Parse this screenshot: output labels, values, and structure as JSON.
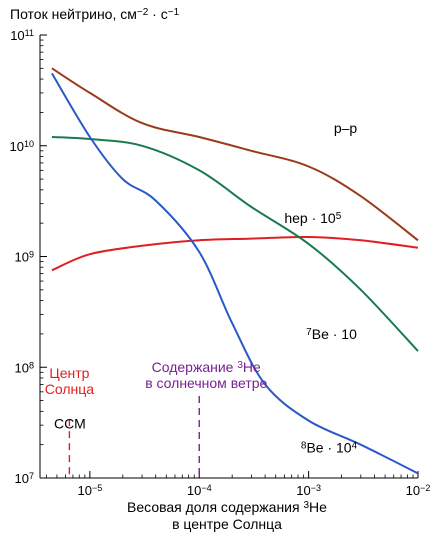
{
  "chart_data": {
    "type": "line",
    "title": "Поток нейтрино, см",
    "title_exp1": "−2",
    "title_mid": " · с",
    "title_exp2": "−1",
    "xlabel_line1": "Весовая доля содержания ",
    "xlabel_sup": "3",
    "xlabel_line1_end": "He",
    "xlabel_line2": "в центре Солнца",
    "x_scale": "log",
    "y_scale": "log",
    "xlim": [
      3.5e-06,
      0.01
    ],
    "ylim": [
      10000000,
      100000000000
    ],
    "x_ticks": [
      {
        "value": 1e-05,
        "base": "10",
        "exp": "−5"
      },
      {
        "value": 0.0001,
        "base": "10",
        "exp": "−4"
      },
      {
        "value": 0.001,
        "base": "10",
        "exp": "−3"
      },
      {
        "value": 0.01,
        "base": "10",
        "exp": "−2"
      }
    ],
    "y_ticks": [
      {
        "value": 10000000,
        "base": "10",
        "exp": "7"
      },
      {
        "value": 100000000,
        "base": "10",
        "exp": "8"
      },
      {
        "value": 1000000000,
        "base": "10",
        "exp": "9"
      },
      {
        "value": 10000000000,
        "base": "10",
        "exp": "10"
      },
      {
        "value": 100000000000,
        "base": "10",
        "exp": "11"
      }
    ],
    "grid": false,
    "legend": "none",
    "series": [
      {
        "name": "p–p",
        "label_parts": [
          {
            "t": "p–p"
          }
        ],
        "color": "#9b3a1a",
        "x": [
          4.5e-06,
          1e-05,
          3e-05,
          0.0001,
          0.0003,
          0.001,
          0.003,
          0.01
        ],
        "y": [
          50000000000,
          30000000000,
          16000000000,
          12000000000,
          9000000000,
          6500000000,
          3500000000,
          1400000000
        ]
      },
      {
        "name": "hep · 10⁵",
        "label_parts": [
          {
            "t": "hep · 10"
          },
          {
            "t": "5",
            "sup": true
          }
        ],
        "color": "#e02020",
        "x": [
          4.5e-06,
          1e-05,
          3e-05,
          0.0001,
          0.0003,
          0.001,
          0.003,
          0.01
        ],
        "y": [
          750000000,
          1050000000,
          1250000000,
          1400000000,
          1450000000,
          1500000000,
          1400000000,
          1200000000
        ]
      },
      {
        "name": "⁷Be · 10",
        "label_parts": [
          {
            "t": "7",
            "sup": true
          },
          {
            "t": "Be · 10"
          }
        ],
        "color": "#1a7a4e",
        "x": [
          4.5e-06,
          1e-05,
          3e-05,
          0.0001,
          0.0003,
          0.001,
          0.003,
          0.01
        ],
        "y": [
          12000000000,
          11500000000,
          10000000000,
          6000000000,
          2800000000,
          1300000000,
          500000000,
          140000000
        ]
      },
      {
        "name": "⁸Be · 10⁴",
        "label_parts": [
          {
            "t": "8",
            "sup": true
          },
          {
            "t": "Be · 10"
          },
          {
            "t": "4",
            "sup": true
          }
        ],
        "color": "#2a58c8",
        "x": [
          4.5e-06,
          1e-05,
          2e-05,
          4e-05,
          0.0001,
          0.0002,
          0.0004,
          0.001,
          0.003,
          0.01
        ],
        "y": [
          45000000000,
          12000000000,
          5000000000,
          3200000000,
          1100000000,
          250000000,
          70000000,
          33000000,
          20000000,
          11000000
        ]
      }
    ],
    "annotations": [
      {
        "id": "center",
        "lines": [
          {
            "parts": [
              {
                "t": "Центр"
              }
            ]
          },
          {
            "parts": [
              {
                "t": "Солнца"
              }
            ]
          }
        ],
        "x": 6.5e-06,
        "color": "#e02020"
      },
      {
        "id": "wind",
        "lines": [
          {
            "parts": [
              {
                "t": "Содержание "
              },
              {
                "t": "3",
                "sup": true
              },
              {
                "t": "He"
              }
            ]
          },
          {
            "parts": [
              {
                "t": "в солнечном ветре"
              }
            ]
          }
        ],
        "x": 0.0001,
        "color": "#7a2090"
      },
      {
        "id": "ssm",
        "lines": [
          {
            "parts": [
              {
                "t": "ССМ"
              }
            ]
          }
        ],
        "color": "#000000"
      }
    ]
  }
}
